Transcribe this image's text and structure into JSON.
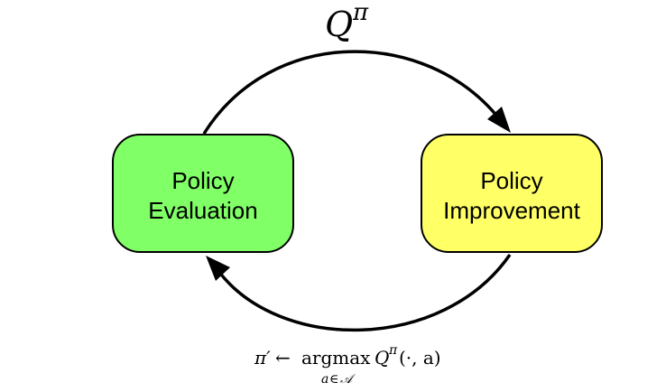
{
  "boxes": {
    "evaluation": {
      "line1": "Policy",
      "line2": "Evaluation",
      "fill": "#80ff66"
    },
    "improvement": {
      "line1": "Policy",
      "line2": "Improvement",
      "fill": "#ffff66"
    }
  },
  "top_label": {
    "symbol": "Q",
    "superscript": "π"
  },
  "bottom_label": {
    "pi_prime": "π′",
    "arrow": "←",
    "operator": "argmax",
    "q": "Q",
    "q_superscript": "π",
    "args": "(·, a)",
    "subscript_var": "a",
    "subscript_in": "∈",
    "subscript_set": "𝒜"
  },
  "colors": {
    "stroke": "#000000",
    "background": "#ffffff"
  }
}
